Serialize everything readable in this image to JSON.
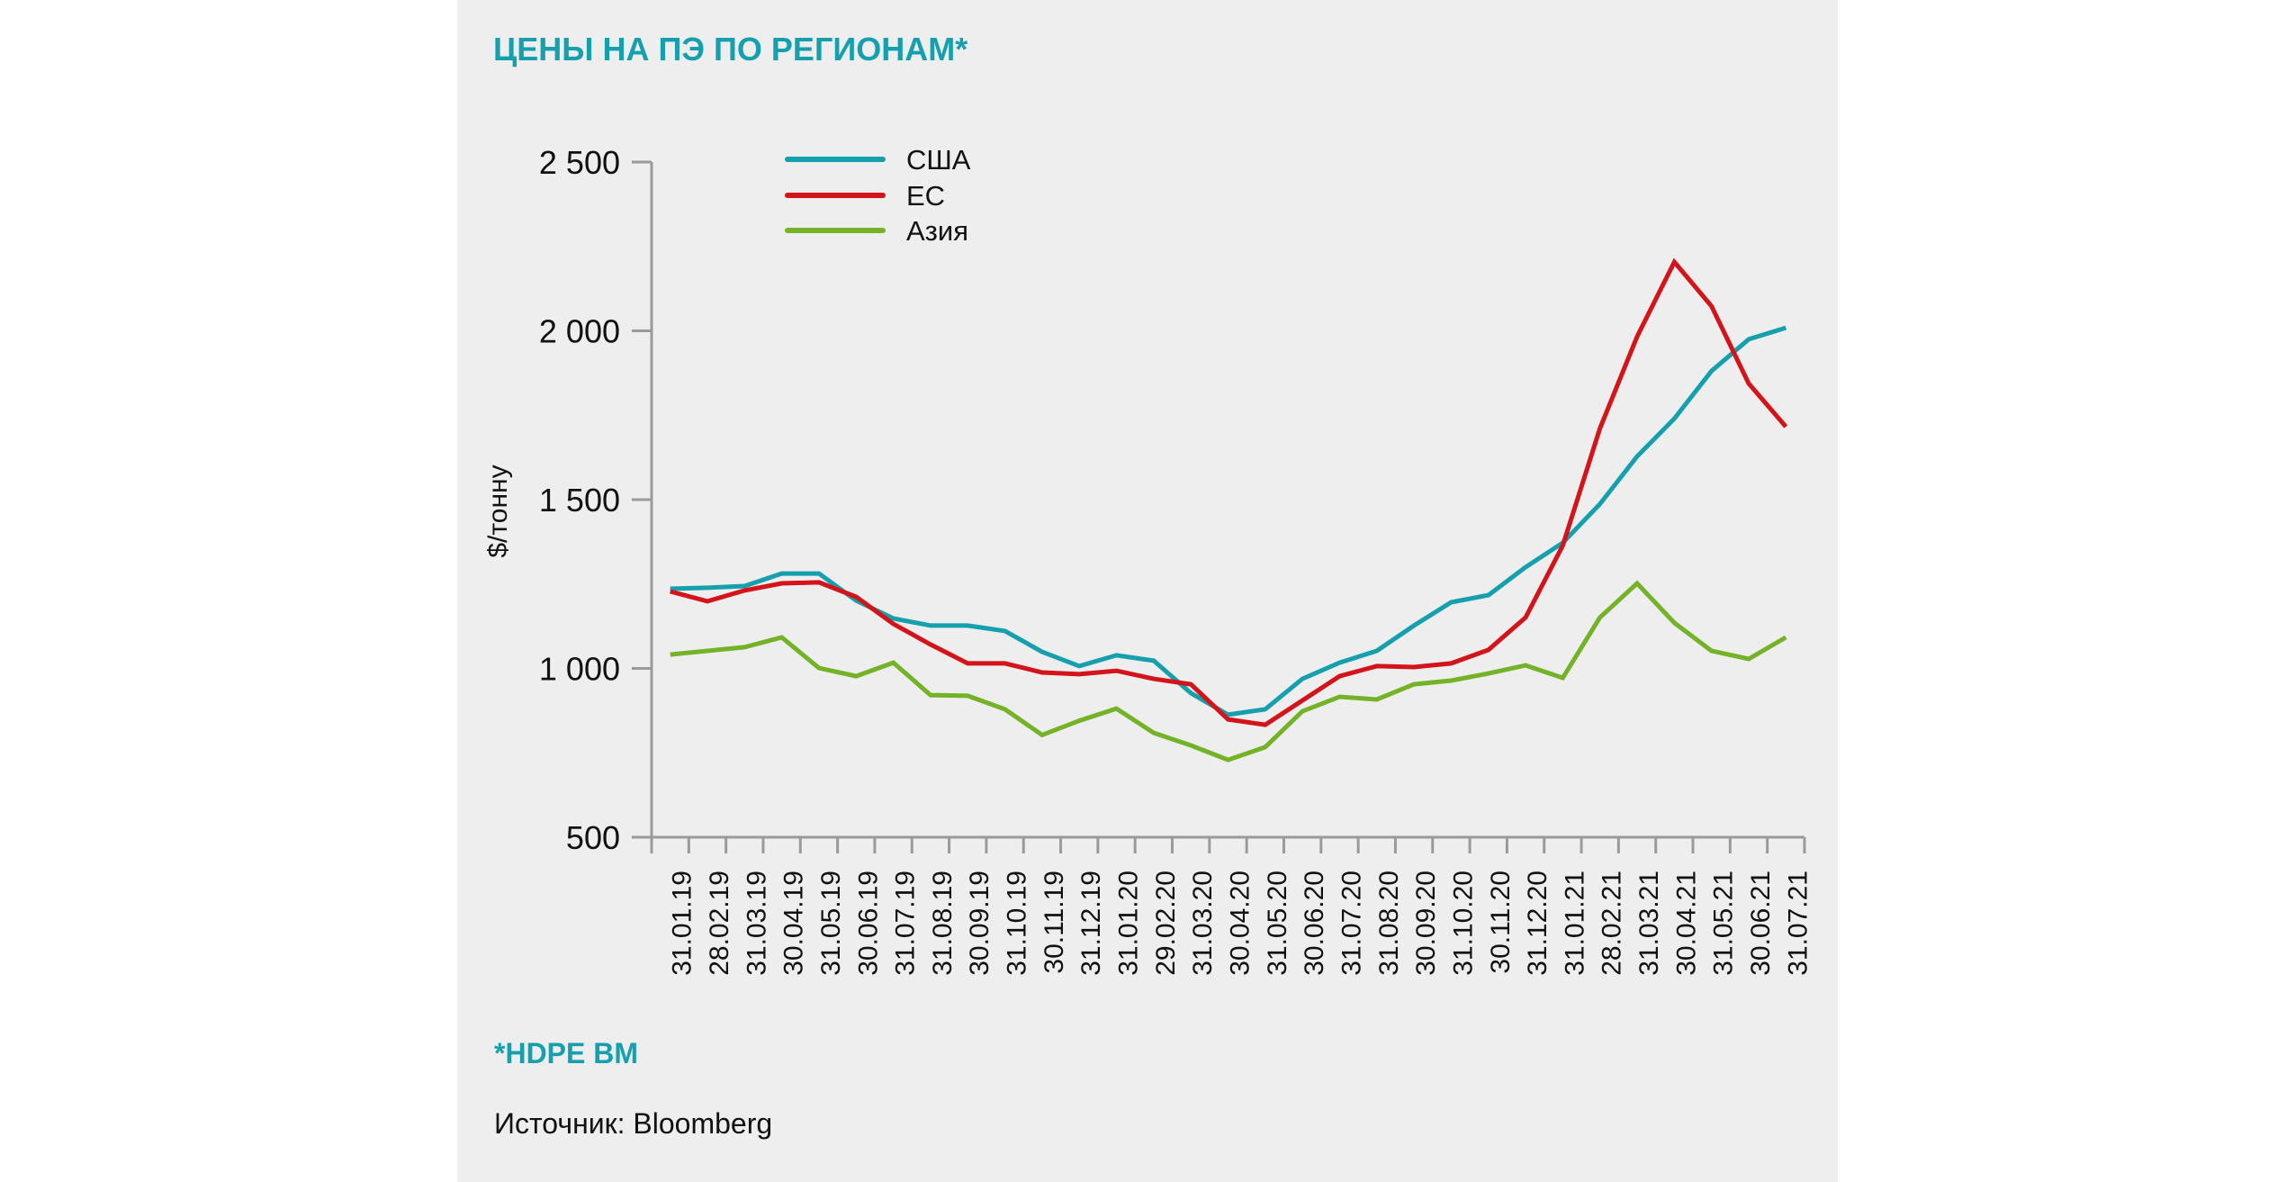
{
  "title": "ЦЕНЫ НА ПЭ ПО РЕГИОНАМ*",
  "footnote": "*HDPE BM",
  "source": "Источник: Bloomberg",
  "colors": {
    "title": "#16a0ae",
    "usa": "#16a0ae",
    "eu": "#d3141a",
    "asia": "#74b328",
    "axis": "#9a9a9a",
    "background": "#eeeeee"
  },
  "chart_data": {
    "type": "line",
    "title": "ЦЕНЫ НА ПЭ ПО РЕГИОНАМ*",
    "xlabel": "",
    "ylabel": "$/тонну",
    "ylim": [
      500,
      2500
    ],
    "yticks": [
      500,
      1000,
      1500,
      2000,
      2500
    ],
    "ytick_labels": [
      "500",
      "1 000",
      "1 500",
      "2 000",
      "2 500"
    ],
    "grid": false,
    "legend_position": "top-left",
    "categories": [
      "31.01.19",
      "28.02.19",
      "31.03.19",
      "30.04.19",
      "31.05.19",
      "30.06.19",
      "31.07.19",
      "31.08.19",
      "30.09.19",
      "31.10.19",
      "30.11.19",
      "31.12.19",
      "31.01.20",
      "29.02.20",
      "31.03.20",
      "30.04.20",
      "31.05.20",
      "30.06.20",
      "31.07.20",
      "31.08.20",
      "30.09.20",
      "31.10.20",
      "30.11.20",
      "31.12.20",
      "31.01.21",
      "28.02.21",
      "31.03.21",
      "30.04.21",
      "31.05.21",
      "30.06.21",
      "31.07.21"
    ],
    "series": [
      {
        "name": "США",
        "color": "#16a0ae",
        "values": [
          1236,
          1239,
          1244,
          1281,
          1281,
          1201,
          1148,
          1127,
          1127,
          1111,
          1049,
          1007,
          1039,
          1023,
          927,
          863,
          879,
          969,
          1017,
          1052,
          1127,
          1196,
          1217,
          1300,
          1372,
          1487,
          1628,
          1740,
          1881,
          1975,
          2009
        ]
      },
      {
        "name": "ЕС",
        "color": "#d3141a",
        "values": [
          1228,
          1199,
          1231,
          1252,
          1255,
          1212,
          1132,
          1071,
          1015,
          1015,
          988,
          983,
          993,
          969,
          953,
          849,
          833,
          905,
          977,
          1007,
          1004,
          1015,
          1055,
          1151,
          1364,
          1711,
          1983,
          2204,
          2073,
          1844,
          1716
        ]
      },
      {
        "name": "Азия",
        "color": "#74b328",
        "values": [
          1041,
          1052,
          1063,
          1092,
          1001,
          977,
          1017,
          921,
          919,
          879,
          803,
          845,
          881,
          809,
          772,
          729,
          767,
          873,
          916,
          908,
          953,
          964,
          985,
          1009,
          972,
          1151,
          1252,
          1135,
          1052,
          1028,
          1092
        ]
      }
    ]
  }
}
